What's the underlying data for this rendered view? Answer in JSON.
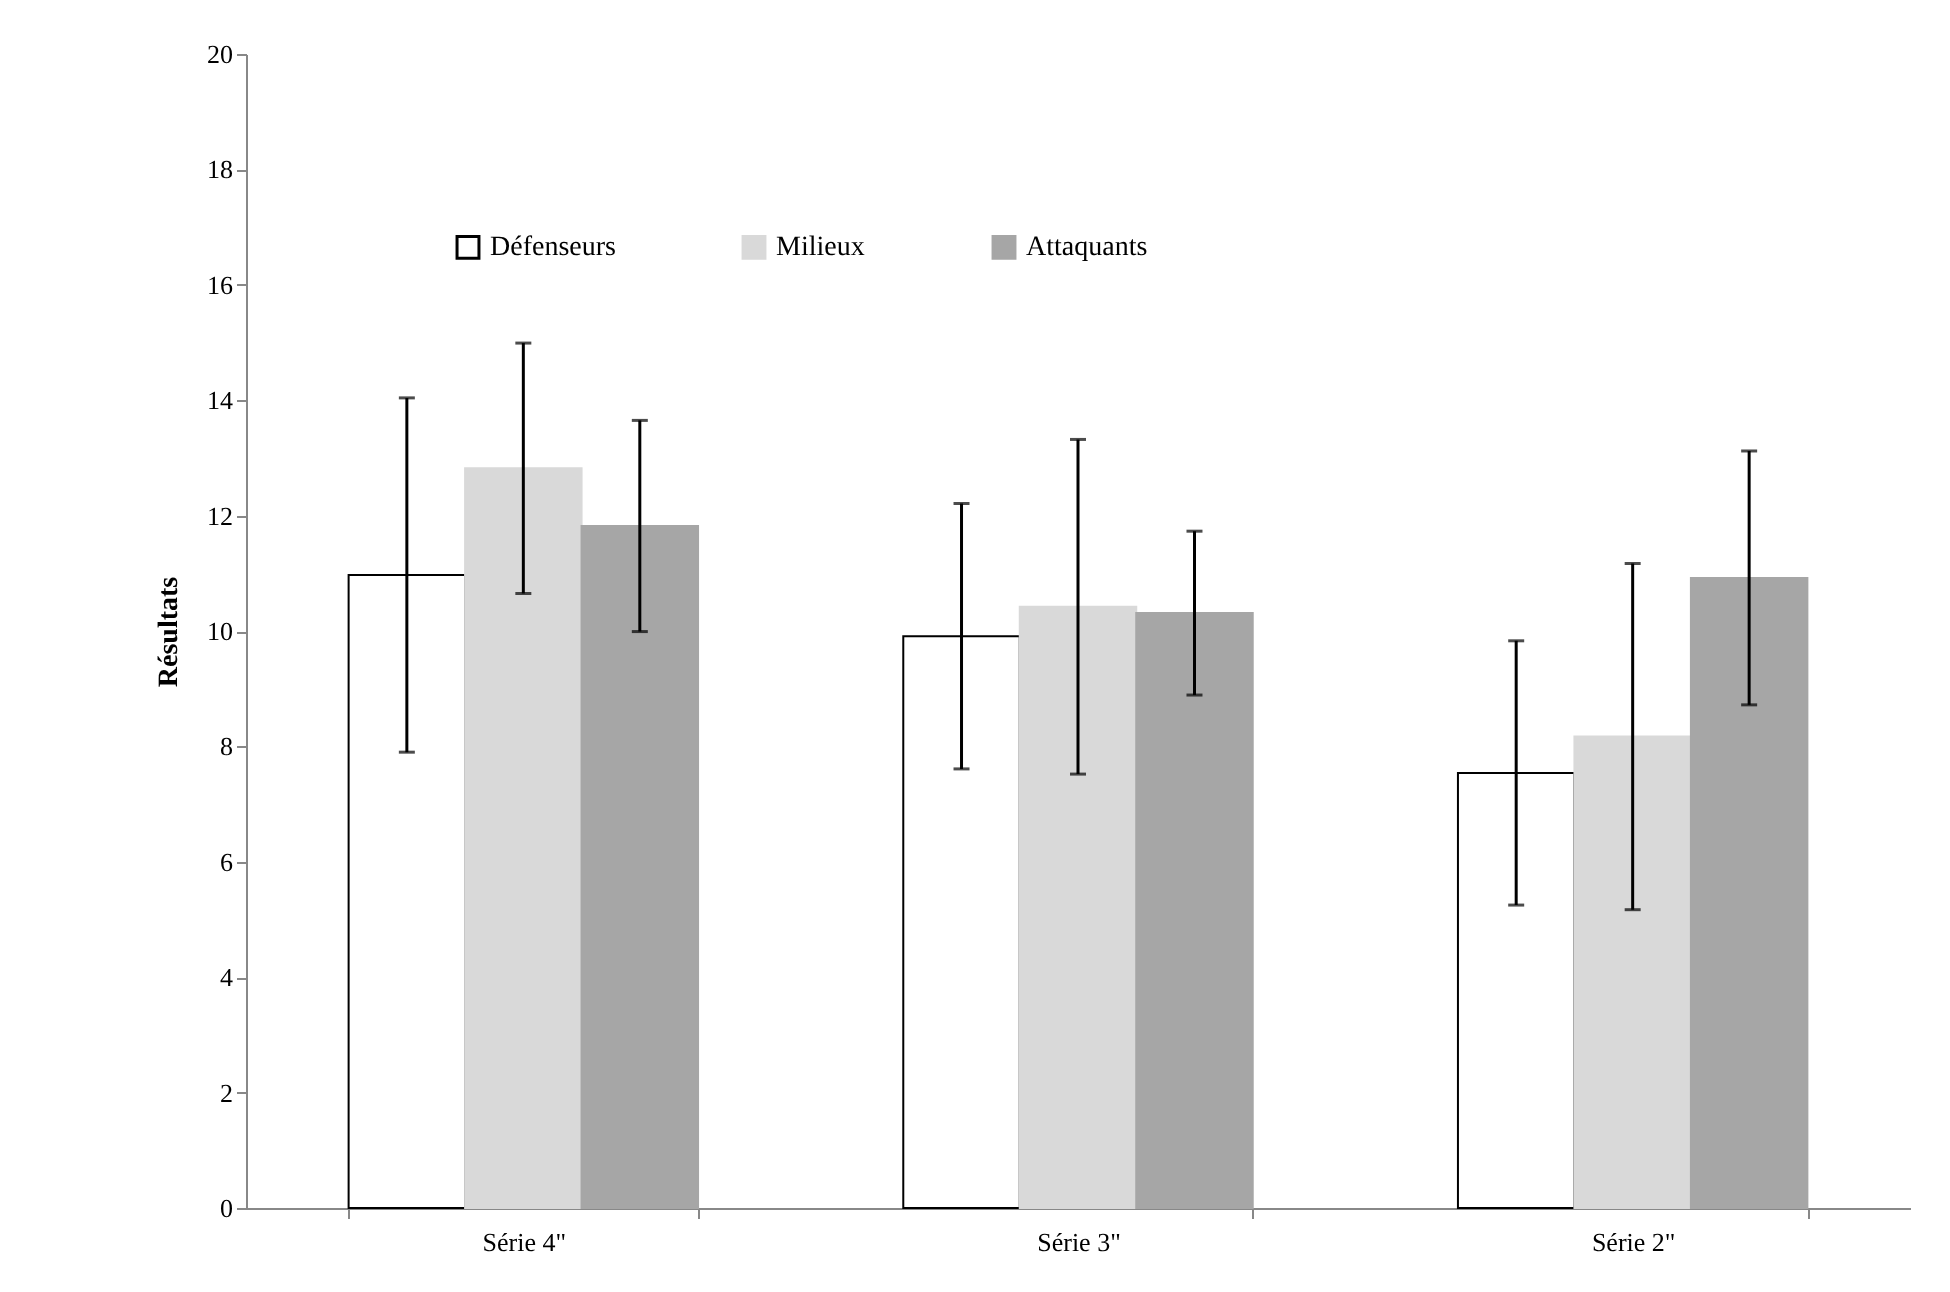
{
  "chart_data": {
    "type": "bar",
    "ylabel": "Résultats",
    "categories": [
      "Série 4\"",
      "Série 3\"",
      "Série 2\""
    ],
    "series": [
      {
        "name": "Défenseurs",
        "color": "#ffffff",
        "values": [
          10.97,
          9.91,
          7.54
        ],
        "errors": [
          3.07,
          2.3,
          2.29
        ]
      },
      {
        "name": "Milieux",
        "color": "#d9d9d9",
        "values": [
          12.82,
          10.42,
          8.17
        ],
        "errors": [
          2.17,
          2.9,
          3.0
        ]
      },
      {
        "name": "Attaquants",
        "color": "#a6a6a6",
        "values": [
          11.82,
          10.31,
          10.92
        ],
        "errors": [
          1.83,
          1.42,
          2.2
        ]
      }
    ],
    "ylim": [
      0,
      20
    ],
    "yticks": [
      0,
      2,
      4,
      6,
      8,
      10,
      12,
      14,
      16,
      18,
      20
    ],
    "grid": false,
    "legend": "top"
  }
}
